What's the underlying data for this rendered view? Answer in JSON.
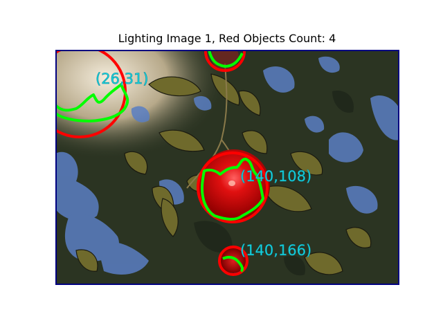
{
  "figure": {
    "title": "Lighting Image 1, Red Objects Count: 4"
  },
  "detections": {
    "count": 4,
    "labels": [
      "(26,31)",
      "(140,108)",
      "(140,166)"
    ],
    "circle_color": "#ff0000",
    "contour_color": "#00ff00",
    "label_color": "#19d6e0",
    "frame_color": "#000080"
  }
}
